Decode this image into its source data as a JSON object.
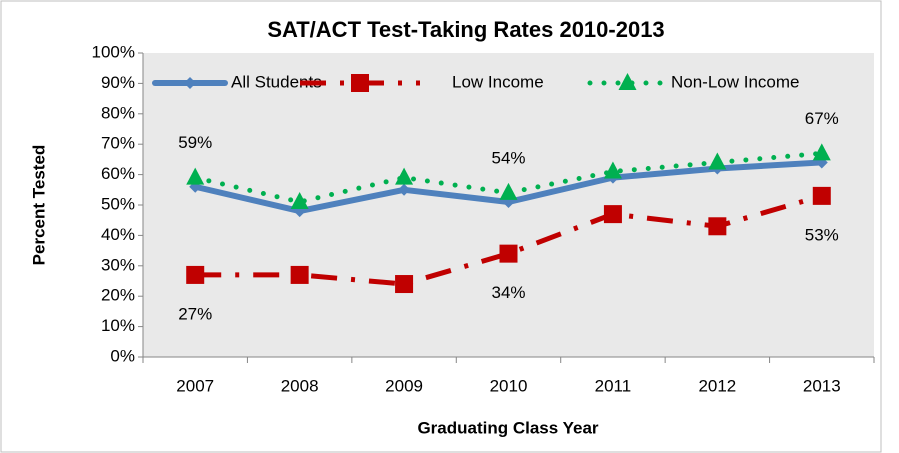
{
  "chart_data": {
    "type": "line",
    "title": "SAT/ACT Test-Taking Rates 2010-2013",
    "y_label": "Percent Tested",
    "x_label": "Graduating Class Year",
    "categories": [
      "2007",
      "2008",
      "2009",
      "2010",
      "2011",
      "2012",
      "2013"
    ],
    "ylim": [
      0,
      100
    ],
    "yticks": [
      {
        "value": 0,
        "label": "0%"
      },
      {
        "value": 10,
        "label": "10%"
      },
      {
        "value": 20,
        "label": "20%"
      },
      {
        "value": 30,
        "label": "30%"
      },
      {
        "value": 40,
        "label": "40%"
      },
      {
        "value": 50,
        "label": "50%"
      },
      {
        "value": 60,
        "label": "60%"
      },
      {
        "value": 70,
        "label": "70%"
      },
      {
        "value": 80,
        "label": "80%"
      },
      {
        "value": 90,
        "label": "90%"
      },
      {
        "value": 100,
        "label": "100%"
      }
    ],
    "grid": false,
    "legend": "top",
    "series": [
      {
        "name": "All Students",
        "color": "#4f81bd",
        "line_style": "solid",
        "marker": "diamond",
        "values": [
          56,
          48,
          55,
          51,
          59,
          62,
          64
        ]
      },
      {
        "name": "Low Income",
        "color": "#c00000",
        "line_style": "dash-dot",
        "marker": "square",
        "label_position": "below",
        "values": [
          27,
          27,
          24,
          34,
          47,
          43,
          53
        ],
        "value_labels": [
          "27%",
          null,
          null,
          "34%",
          null,
          null,
          "53%"
        ]
      },
      {
        "name": "Non-Low Income",
        "color": "#00b050",
        "line_style": "dotted",
        "marker": "triangle",
        "label_position": "above",
        "values": [
          59,
          51,
          59,
          54,
          61,
          64,
          67
        ],
        "value_labels": [
          "59%",
          null,
          null,
          "54%",
          null,
          null,
          "67%"
        ]
      }
    ]
  }
}
